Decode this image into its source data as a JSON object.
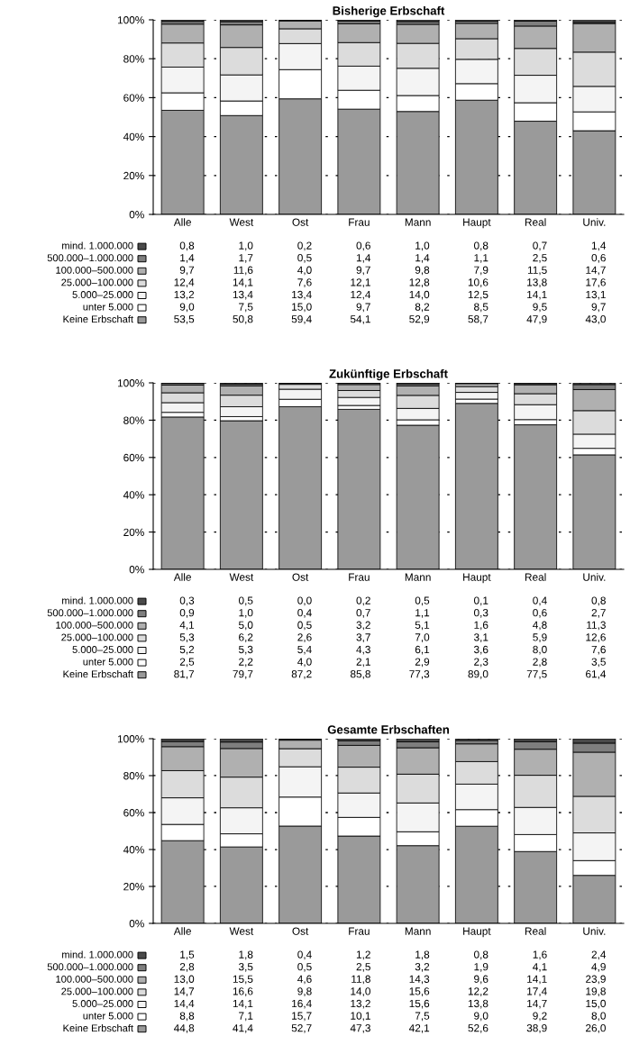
{
  "chart_data": [
    {
      "type": "bar",
      "title": "Bisherige Erbschaft",
      "stacked": true,
      "categories": [
        "Alle",
        "West",
        "Ost",
        "Frau",
        "Mann",
        "Haupt",
        "Real",
        "Univ."
      ],
      "ylim": [
        0,
        100
      ],
      "yticks": [
        {
          "value": 0,
          "label": "0%"
        },
        {
          "value": 20,
          "label": "20%"
        },
        {
          "value": 40,
          "label": "40%"
        },
        {
          "value": 60,
          "label": "60%"
        },
        {
          "value": 80,
          "label": "80%"
        },
        {
          "value": 100,
          "label": "100%"
        }
      ],
      "grid": "y",
      "legend": "bottom",
      "series": [
        {
          "name": "Keine Erbschaft",
          "color": "#9a9a9a",
          "values": [
            53.5,
            50.8,
            59.4,
            54.1,
            52.9,
            58.7,
            47.9,
            43.0
          ],
          "value_labels": [
            "53,5",
            "50,8",
            "59,4",
            "54,1",
            "52,9",
            "58,7",
            "47,9",
            "43,0"
          ]
        },
        {
          "name": "unter 5.000",
          "color": "#ffffff",
          "values": [
            9.0,
            7.5,
            15.0,
            9.7,
            8.2,
            8.5,
            9.5,
            9.7
          ],
          "value_labels": [
            "9,0",
            "7,5",
            "15,0",
            "9,7",
            "8,2",
            "8,5",
            "9,5",
            "9,7"
          ]
        },
        {
          "name": "5.000–25.000",
          "color": "#f4f4f4",
          "values": [
            13.2,
            13.4,
            13.4,
            12.4,
            14.0,
            12.5,
            14.1,
            13.1
          ],
          "value_labels": [
            "13,2",
            "13,4",
            "13,4",
            "12,4",
            "14,0",
            "12,5",
            "14,1",
            "13,1"
          ]
        },
        {
          "name": "25.000–100.000",
          "color": "#dcdcdc",
          "values": [
            12.4,
            14.1,
            7.6,
            12.1,
            12.8,
            10.6,
            13.8,
            17.6
          ],
          "value_labels": [
            "12,4",
            "14,1",
            "7,6",
            "12,1",
            "12,8",
            "10,6",
            "13,8",
            "17,6"
          ]
        },
        {
          "name": "100.000–500.000",
          "color": "#b0b0b0",
          "values": [
            9.7,
            11.6,
            4.0,
            9.7,
            9.8,
            7.9,
            11.5,
            14.7
          ],
          "value_labels": [
            "9,7",
            "11,6",
            "4,0",
            "9,7",
            "9,8",
            "7,9",
            "11,5",
            "14,7"
          ]
        },
        {
          "name": "500.000–1.000.000",
          "color": "#7e7e7e",
          "values": [
            1.4,
            1.7,
            0.5,
            1.4,
            1.4,
            1.1,
            2.5,
            0.6
          ],
          "value_labels": [
            "1,4",
            "1,7",
            "0,5",
            "1,4",
            "1,4",
            "1,1",
            "2,5",
            "0,6"
          ]
        },
        {
          "name": "mind. 1.000.000",
          "color": "#4a4a4a",
          "values": [
            0.8,
            1.0,
            0.2,
            0.6,
            1.0,
            0.8,
            0.7,
            1.4
          ],
          "value_labels": [
            "0,8",
            "1,0",
            "0,2",
            "0,6",
            "1,0",
            "0,8",
            "0,7",
            "1,4"
          ]
        }
      ]
    },
    {
      "type": "bar",
      "title": "Zukünftige Erbschaft",
      "stacked": true,
      "categories": [
        "Alle",
        "West",
        "Ost",
        "Frau",
        "Mann",
        "Haupt",
        "Real",
        "Univ."
      ],
      "ylim": [
        0,
        100
      ],
      "yticks": [
        {
          "value": 0,
          "label": "0%"
        },
        {
          "value": 20,
          "label": "20%"
        },
        {
          "value": 40,
          "label": "40%"
        },
        {
          "value": 60,
          "label": "60%"
        },
        {
          "value": 80,
          "label": "80%"
        },
        {
          "value": 100,
          "label": "100%"
        }
      ],
      "grid": "y",
      "legend": "bottom",
      "series": [
        {
          "name": "Keine Erbschaft",
          "color": "#9a9a9a",
          "values": [
            81.7,
            79.7,
            87.2,
            85.8,
            77.3,
            89.0,
            77.5,
            61.4
          ],
          "value_labels": [
            "81,7",
            "79,7",
            "87,2",
            "85,8",
            "77,3",
            "89,0",
            "77,5",
            "61,4"
          ]
        },
        {
          "name": "unter 5.000",
          "color": "#ffffff",
          "values": [
            2.5,
            2.2,
            4.0,
            2.1,
            2.9,
            2.3,
            2.8,
            3.5
          ],
          "value_labels": [
            "2,5",
            "2,2",
            "4,0",
            "2,1",
            "2,9",
            "2,3",
            "2,8",
            "3,5"
          ]
        },
        {
          "name": "5.000–25.000",
          "color": "#f4f4f4",
          "values": [
            5.2,
            5.3,
            5.4,
            4.3,
            6.1,
            3.6,
            8.0,
            7.6
          ],
          "value_labels": [
            "5,2",
            "5,3",
            "5,4",
            "4,3",
            "6,1",
            "3,6",
            "8,0",
            "7,6"
          ]
        },
        {
          "name": "25.000–100.000",
          "color": "#dcdcdc",
          "values": [
            5.3,
            6.2,
            2.6,
            3.7,
            7.0,
            3.1,
            5.9,
            12.6
          ],
          "value_labels": [
            "5,3",
            "6,2",
            "2,6",
            "3,7",
            "7,0",
            "3,1",
            "5,9",
            "12,6"
          ]
        },
        {
          "name": "100.000–500.000",
          "color": "#b0b0b0",
          "values": [
            4.1,
            5.0,
            0.5,
            3.2,
            5.1,
            1.6,
            4.8,
            11.3
          ],
          "value_labels": [
            "4,1",
            "5,0",
            "0,5",
            "3,2",
            "5,1",
            "1,6",
            "4,8",
            "11,3"
          ]
        },
        {
          "name": "500.000–1.000.000",
          "color": "#7e7e7e",
          "values": [
            0.9,
            1.0,
            0.4,
            0.7,
            1.1,
            0.3,
            0.6,
            2.7
          ],
          "value_labels": [
            "0,9",
            "1,0",
            "0,4",
            "0,7",
            "1,1",
            "0,3",
            "0,6",
            "2,7"
          ]
        },
        {
          "name": "mind. 1.000.000",
          "color": "#4a4a4a",
          "values": [
            0.3,
            0.5,
            0.0,
            0.2,
            0.5,
            0.1,
            0.4,
            0.8
          ],
          "value_labels": [
            "0,3",
            "0,5",
            "0,0",
            "0,2",
            "0,5",
            "0,1",
            "0,4",
            "0,8"
          ]
        }
      ]
    },
    {
      "type": "bar",
      "title": "Gesamte Erbschaften",
      "stacked": true,
      "categories": [
        "Alle",
        "West",
        "Ost",
        "Frau",
        "Mann",
        "Haupt",
        "Real",
        "Univ."
      ],
      "ylim": [
        0,
        100
      ],
      "yticks": [
        {
          "value": 0,
          "label": "0%"
        },
        {
          "value": 20,
          "label": "20%"
        },
        {
          "value": 40,
          "label": "40%"
        },
        {
          "value": 60,
          "label": "60%"
        },
        {
          "value": 80,
          "label": "80%"
        },
        {
          "value": 100,
          "label": "100%"
        }
      ],
      "grid": "y",
      "legend": "bottom",
      "series": [
        {
          "name": "Keine Erbschaft",
          "color": "#9a9a9a",
          "values": [
            44.8,
            41.4,
            52.7,
            47.3,
            42.1,
            52.6,
            38.9,
            26.0
          ],
          "value_labels": [
            "44,8",
            "41,4",
            "52,7",
            "47,3",
            "42,1",
            "52,6",
            "38,9",
            "26,0"
          ]
        },
        {
          "name": "unter 5.000",
          "color": "#ffffff",
          "values": [
            8.8,
            7.1,
            15.7,
            10.1,
            7.5,
            9.0,
            9.2,
            8.0
          ],
          "value_labels": [
            "8,8",
            "7,1",
            "15,7",
            "10,1",
            "7,5",
            "9,0",
            "9,2",
            "8,0"
          ]
        },
        {
          "name": "5.000–25.000",
          "color": "#f4f4f4",
          "values": [
            14.4,
            14.1,
            16.4,
            13.2,
            15.6,
            13.8,
            14.7,
            15.0
          ],
          "value_labels": [
            "14,4",
            "14,1",
            "16,4",
            "13,2",
            "15,6",
            "13,8",
            "14,7",
            "15,0"
          ]
        },
        {
          "name": "25.000–100.000",
          "color": "#dcdcdc",
          "values": [
            14.7,
            16.6,
            9.8,
            14.0,
            15.6,
            12.2,
            17.4,
            19.8
          ],
          "value_labels": [
            "14,7",
            "16,6",
            "9,8",
            "14,0",
            "15,6",
            "12,2",
            "17,4",
            "19,8"
          ]
        },
        {
          "name": "100.000–500.000",
          "color": "#b0b0b0",
          "values": [
            13.0,
            15.5,
            4.6,
            11.8,
            14.3,
            9.6,
            14.1,
            23.9
          ],
          "value_labels": [
            "13,0",
            "15,5",
            "4,6",
            "11,8",
            "14,3",
            "9,6",
            "14,1",
            "23,9"
          ]
        },
        {
          "name": "500.000–1.000.000",
          "color": "#7e7e7e",
          "values": [
            2.8,
            3.5,
            0.5,
            2.5,
            3.2,
            1.9,
            4.1,
            4.9
          ],
          "value_labels": [
            "2,8",
            "3,5",
            "0,5",
            "2,5",
            "3,2",
            "1,9",
            "4,1",
            "4,9"
          ]
        },
        {
          "name": "mind. 1.000.000",
          "color": "#4a4a4a",
          "values": [
            1.5,
            1.8,
            0.4,
            1.2,
            1.8,
            0.8,
            1.6,
            2.4
          ],
          "value_labels": [
            "1,5",
            "1,8",
            "0,4",
            "1,2",
            "1,8",
            "0,8",
            "1,6",
            "2,4"
          ]
        }
      ]
    }
  ]
}
